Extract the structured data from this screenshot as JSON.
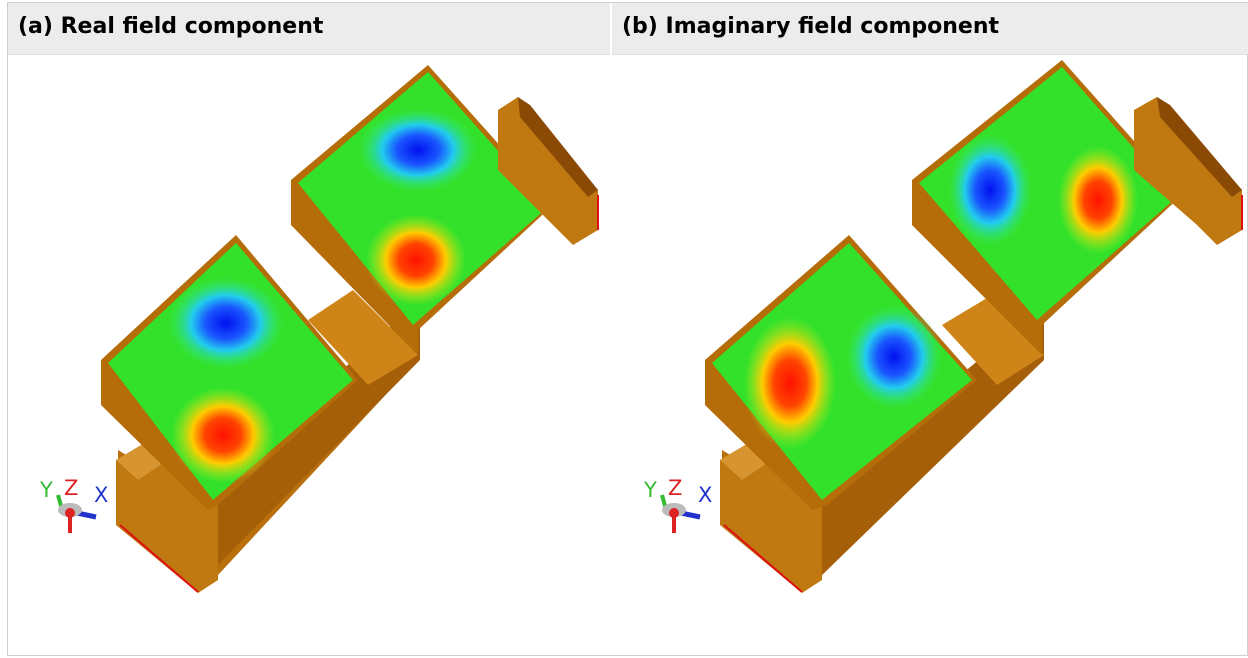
{
  "panels": [
    {
      "label": "(a) Real field component",
      "axes": {
        "y": "Y",
        "z": "Z",
        "x": "X"
      }
    },
    {
      "label": "(b) Imaginary field component",
      "axes": {
        "y": "Y",
        "z": "Z",
        "x": "X"
      }
    }
  ],
  "colors": {
    "wall": "#c27a10",
    "wall_dark": "#8a4a06",
    "wall_top": "#d08a1c",
    "field_low": "#0022ee",
    "field_mid": "#22dd22",
    "field_high": "#ff1a00",
    "edge_red": "#dd1111",
    "axis_y": "#33bb33",
    "axis_z": "#dd2222",
    "axis_x": "#2233cc"
  }
}
